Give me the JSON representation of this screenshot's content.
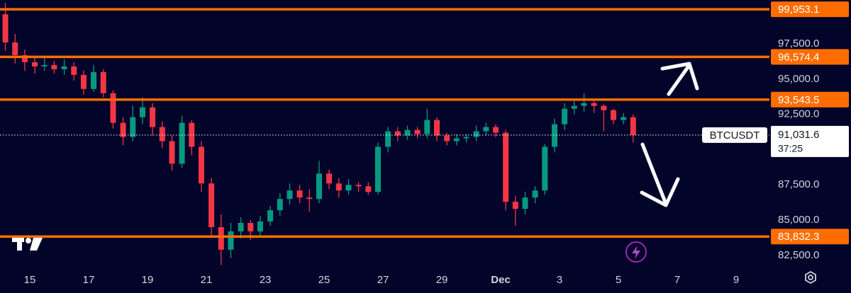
{
  "chart_data": {
    "type": "candlestick",
    "symbol": "BTCUSDT",
    "countdown": "37:25",
    "current_price": {
      "value": 91031.6,
      "label": "91,031.6"
    },
    "up_color": "#089981",
    "down_color": "#f23645",
    "level_color": "#ff6d00",
    "levels": [
      {
        "value": 99953.1,
        "label": "99,953.1"
      },
      {
        "value": 96574.4,
        "label": "96,574.4"
      },
      {
        "value": 93543.5,
        "label": "93,543.5"
      },
      {
        "value": 83832.3,
        "label": "83,832.3"
      }
    ],
    "x": [
      -0.83,
      -0.5,
      -0.17,
      0.17,
      0.5,
      0.83,
      1.17,
      1.5,
      1.83,
      2.17,
      2.5,
      2.83,
      3.17,
      3.5,
      3.83,
      4.17,
      4.5,
      4.83,
      5.17,
      5.5,
      5.83,
      6.17,
      6.5,
      6.83,
      7.17,
      7.5,
      7.83,
      8.17,
      8.5,
      8.83,
      9.17,
      9.5,
      9.83,
      10.17,
      10.5,
      10.83,
      11.17,
      11.5,
      11.83,
      12.17,
      12.5,
      12.83,
      13.17,
      13.5,
      13.83,
      14.17,
      14.5,
      14.83,
      15.17,
      15.5,
      15.83,
      16.17,
      16.5,
      16.83,
      17.17,
      17.5,
      17.83,
      18.17,
      18.5,
      18.83,
      19.17,
      19.5,
      19.83,
      20.17,
      20.5
    ],
    "open": [
      99600,
      97600,
      96700,
      96200,
      95900,
      96000,
      95700,
      95900,
      95300,
      94300,
      95500,
      94000,
      91900,
      90900,
      92300,
      93000,
      91600,
      90600,
      89000,
      91900,
      90200,
      87600,
      84500,
      82900,
      84200,
      84800,
      84200,
      84900,
      85700,
      86500,
      87100,
      86600,
      86500,
      88300,
      87600,
      87100,
      87500,
      87400,
      87000,
      90200,
      91300,
      91000,
      91400,
      91100,
      92100,
      91000,
      90600,
      90800,
      90900,
      91300,
      91600,
      91200,
      86300,
      85800,
      86600,
      87100,
      90200,
      91800,
      92900,
      93100,
      93300,
      93100,
      92800,
      92100,
      92300
    ],
    "high": [
      100400,
      98200,
      97100,
      96600,
      96500,
      96300,
      96400,
      96200,
      95600,
      96000,
      95700,
      94200,
      92300,
      93100,
      93700,
      93300,
      92000,
      91000,
      92400,
      92100,
      90600,
      88000,
      85400,
      84800,
      85200,
      85000,
      85300,
      86000,
      86900,
      87600,
      87500,
      87200,
      89200,
      88600,
      88000,
      87900,
      87700,
      87700,
      90500,
      91600,
      91600,
      91700,
      91600,
      92900,
      92300,
      91200,
      91100,
      91100,
      91700,
      91900,
      91800,
      91400,
      86700,
      87000,
      87400,
      90400,
      92200,
      93300,
      93600,
      94000,
      93500,
      93200,
      92900,
      92600,
      92500
    ],
    "low": [
      97000,
      96100,
      95600,
      95400,
      95600,
      95400,
      95300,
      94900,
      93900,
      94100,
      93700,
      91500,
      90300,
      90600,
      91800,
      91000,
      90100,
      88500,
      88700,
      89600,
      87000,
      83800,
      81800,
      82300,
      83700,
      83600,
      83900,
      84600,
      85300,
      86100,
      86200,
      85600,
      86200,
      87200,
      86600,
      86800,
      87000,
      86800,
      86800,
      89800,
      90600,
      90700,
      90800,
      90800,
      90600,
      90300,
      90300,
      90500,
      90600,
      91000,
      90900,
      85700,
      84600,
      85400,
      86200,
      86800,
      89800,
      91400,
      92500,
      92700,
      92600,
      91300,
      91800,
      91800,
      90500
    ],
    "close": [
      97600,
      96700,
      96200,
      95900,
      96000,
      95700,
      95900,
      95300,
      94300,
      95500,
      94000,
      91900,
      90900,
      92300,
      93000,
      91600,
      90600,
      89000,
      91900,
      90200,
      87600,
      84500,
      82900,
      84200,
      84800,
      84200,
      84900,
      85700,
      86500,
      87100,
      86600,
      86500,
      88300,
      87600,
      87100,
      87500,
      87400,
      87000,
      90200,
      91300,
      91000,
      91400,
      91100,
      92100,
      91000,
      90600,
      90800,
      90900,
      91300,
      91600,
      91200,
      86300,
      85800,
      86600,
      87100,
      90200,
      91800,
      92900,
      93100,
      93300,
      93100,
      92800,
      92100,
      92300,
      91031.6
    ],
    "xlim": [
      -1.012,
      25.13
    ],
    "xticks": [
      {
        "value": 0,
        "label": "15"
      },
      {
        "value": 2,
        "label": "17"
      },
      {
        "value": 4,
        "label": "19"
      },
      {
        "value": 6,
        "label": "21"
      },
      {
        "value": 8,
        "label": "23"
      },
      {
        "value": 10,
        "label": "25"
      },
      {
        "value": 12,
        "label": "27"
      },
      {
        "value": 14,
        "label": "29"
      },
      {
        "value": 16,
        "label": "Dec"
      },
      {
        "value": 18,
        "label": "3"
      },
      {
        "value": 20,
        "label": "5"
      },
      {
        "value": 22,
        "label": "7"
      },
      {
        "value": 24,
        "label": "9"
      }
    ],
    "ylim": [
      81436,
      100612
    ],
    "yticks": [
      {
        "value": 82500,
        "label": "82,500.0"
      },
      {
        "value": 85000,
        "label": "85,000.0"
      },
      {
        "value": 87500,
        "label": "87,500.0"
      },
      {
        "value": 92500,
        "label": "92,500.0"
      },
      {
        "value": 95000,
        "label": "95,000.0"
      },
      {
        "value": 97500,
        "label": "97,500.0"
      }
    ]
  }
}
